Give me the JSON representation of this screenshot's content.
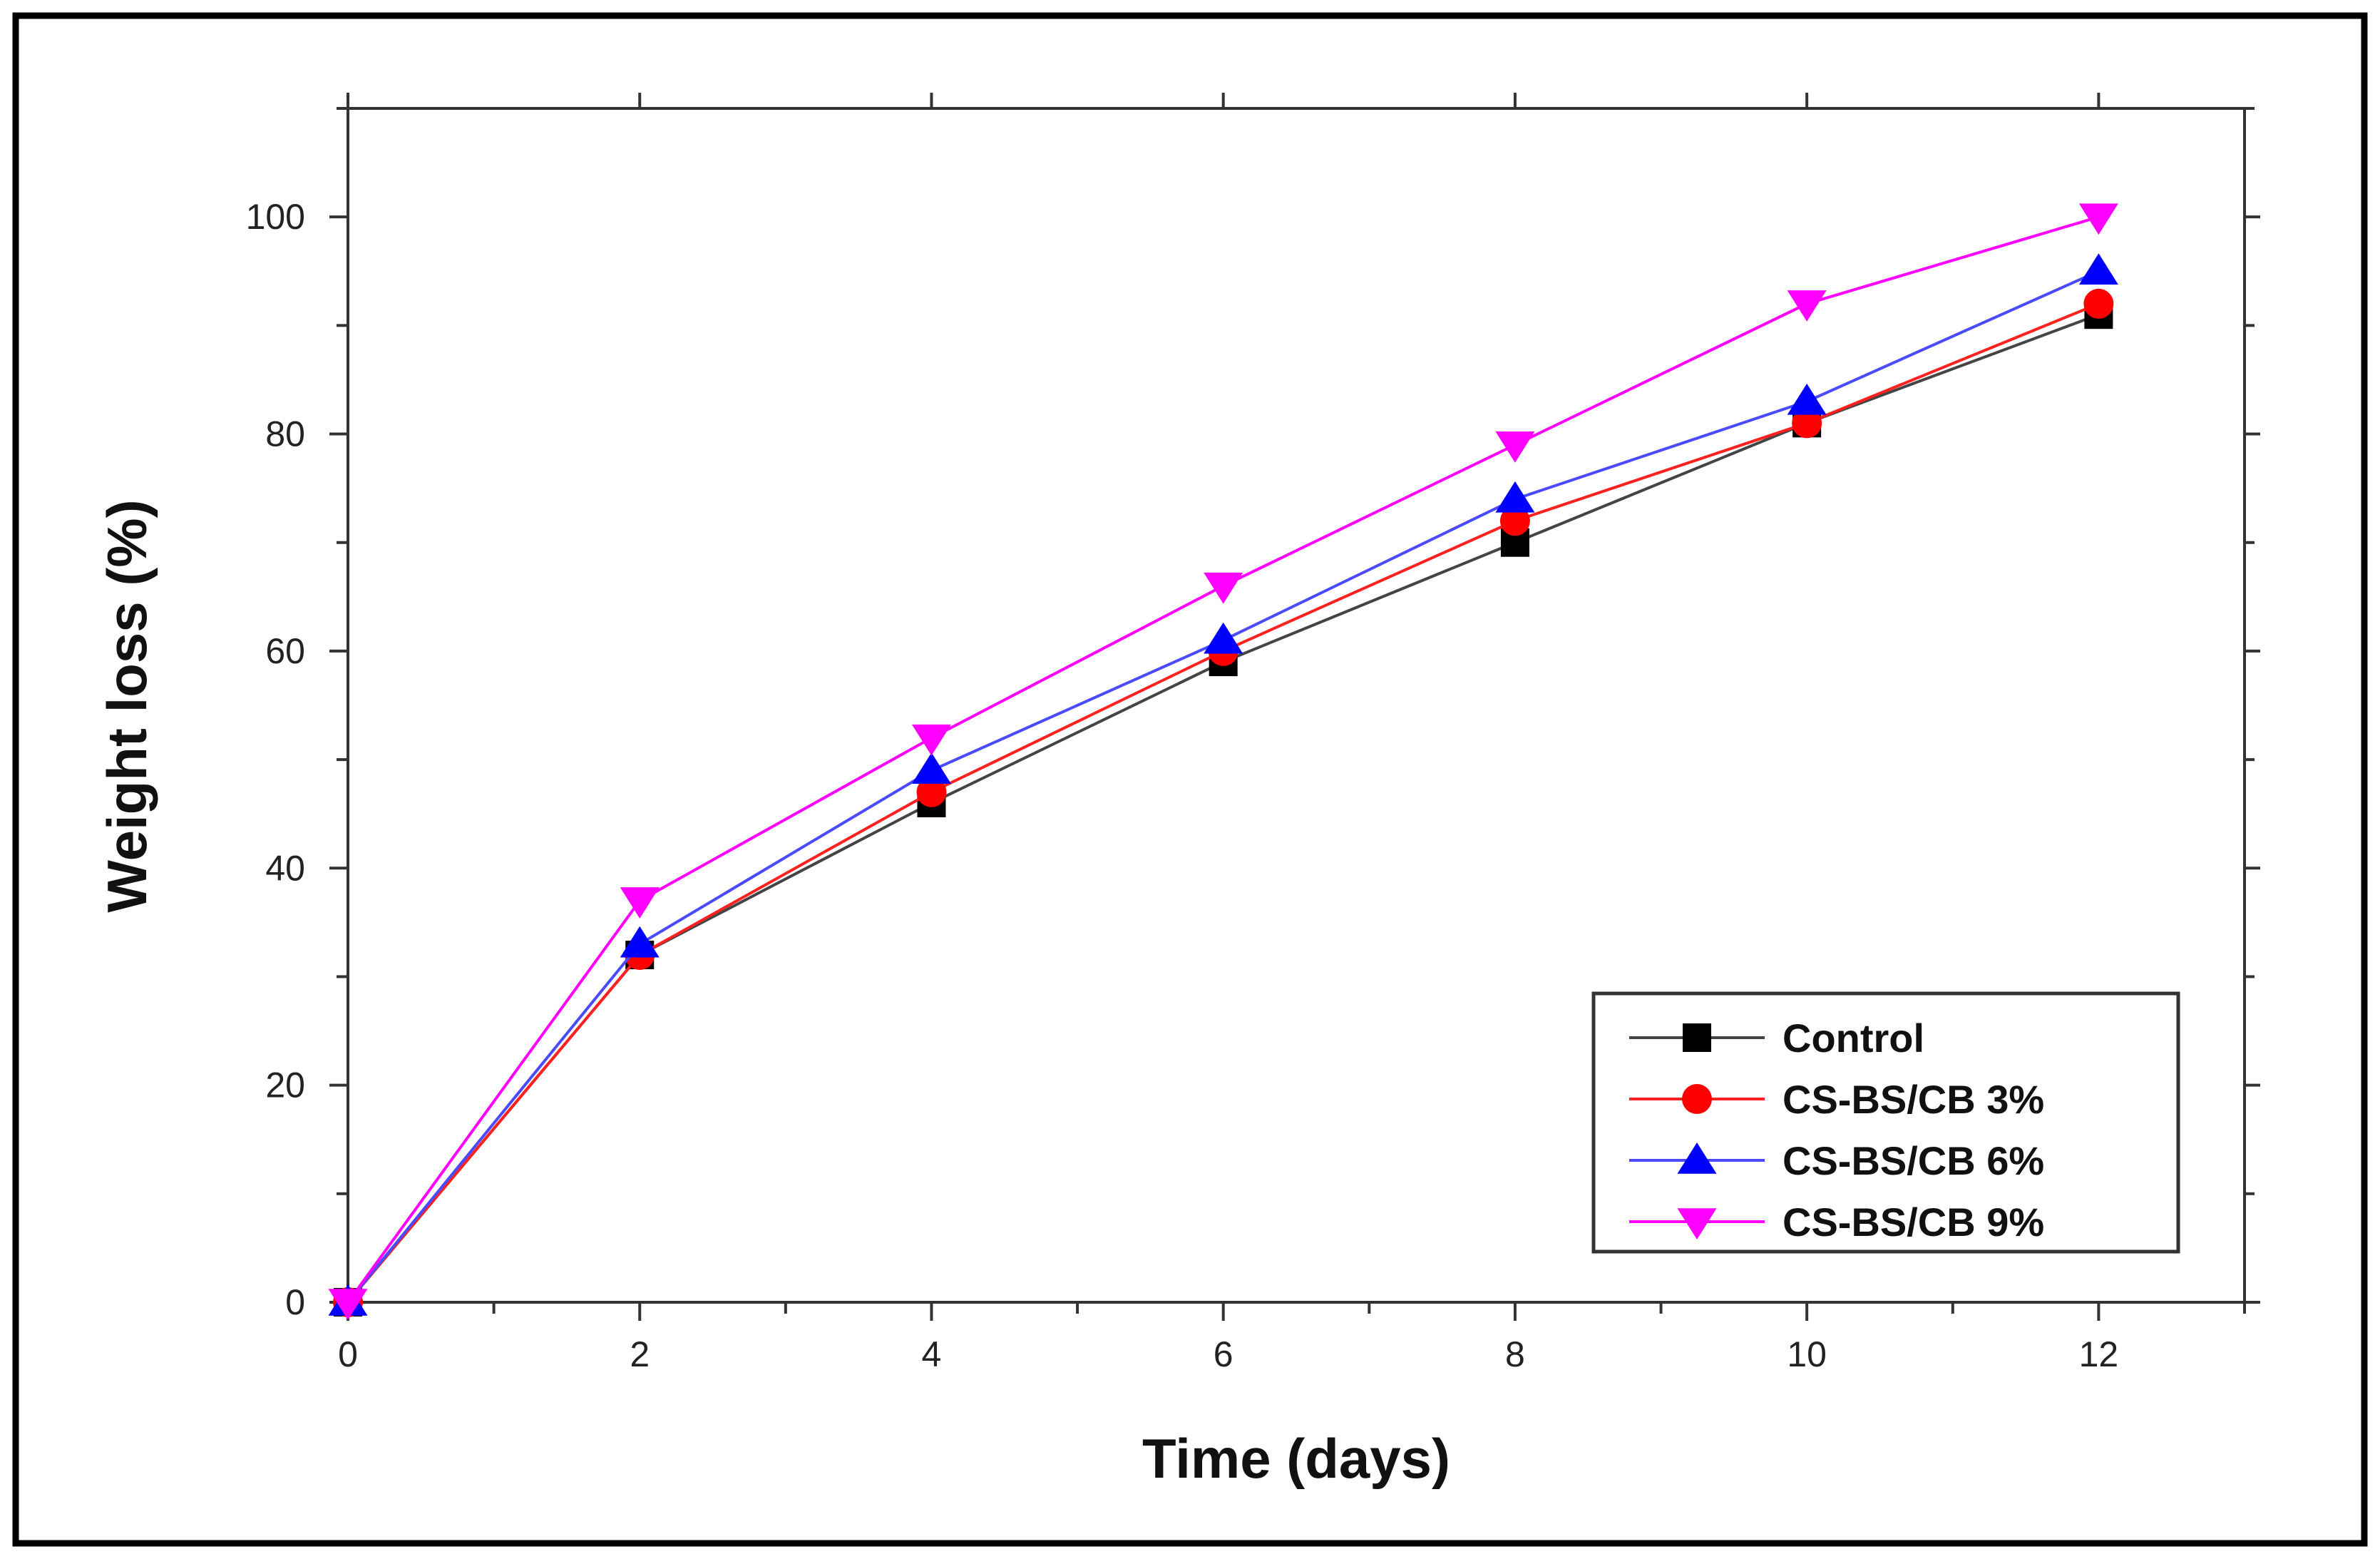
{
  "chart_data": {
    "type": "line",
    "title": "",
    "xlabel": "Time (days)",
    "ylabel": "Weight loss (%)",
    "x": [
      0,
      2,
      4,
      6,
      8,
      10,
      12
    ],
    "xlim": [
      0,
      13
    ],
    "ylim": [
      0,
      110
    ],
    "xticks": [
      0,
      2,
      4,
      6,
      8,
      10,
      12
    ],
    "yticks": [
      0,
      20,
      40,
      60,
      80,
      100
    ],
    "grid": false,
    "legend_position": "bottom-right",
    "series": [
      {
        "name": "Control",
        "marker": "square",
        "color": "#000000",
        "line_color": "#444444",
        "values": [
          0,
          32,
          46,
          59,
          70,
          81,
          91
        ]
      },
      {
        "name": "CS-BS/CB 3%",
        "marker": "circle",
        "color": "#ff0000",
        "line_color": "#ff2020",
        "values": [
          0,
          32,
          47,
          60,
          72,
          81,
          92
        ]
      },
      {
        "name": "CS-BS/CB 6%",
        "marker": "triangle-up",
        "color": "#0000ff",
        "line_color": "#4a4aff",
        "values": [
          0,
          33,
          49,
          61,
          74,
          83,
          95
        ]
      },
      {
        "name": "CS-BS/CB 9%",
        "marker": "triangle-down",
        "color": "#ff00ff",
        "line_color": "#ff00ff",
        "values": [
          0,
          37,
          52,
          66,
          79,
          92,
          100
        ]
      }
    ]
  }
}
